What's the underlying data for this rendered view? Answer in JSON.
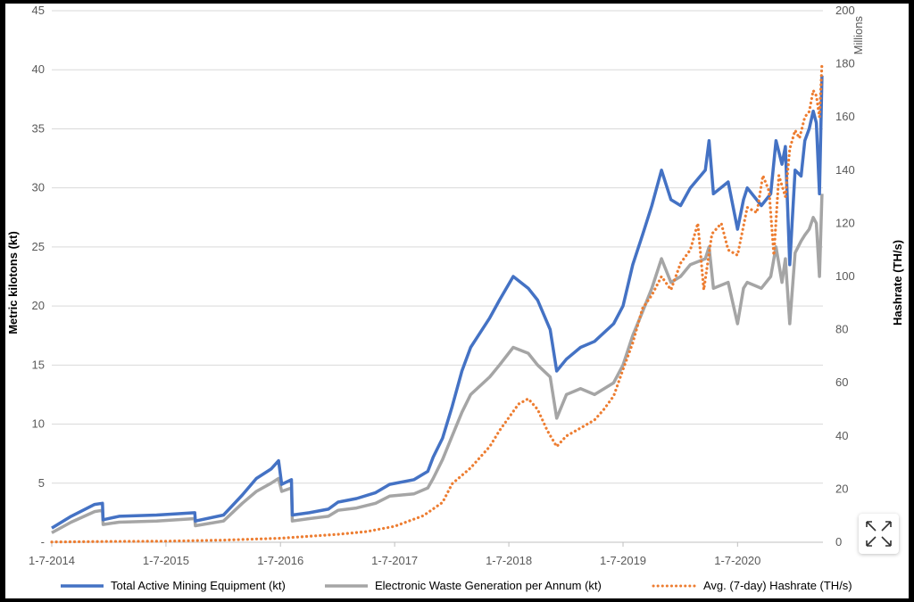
{
  "chart_data": {
    "type": "line",
    "title": "",
    "left_axis": {
      "label": "Metric kilotons (kt)",
      "ticks": [
        "-",
        "5",
        "10",
        "15",
        "20",
        "25",
        "30",
        "35",
        "40",
        "45"
      ],
      "ylim": [
        0,
        45
      ]
    },
    "right_axis": {
      "label": "Hashrate (TH/s)",
      "units_label": "Millions",
      "ticks": [
        "0",
        "20",
        "40",
        "60",
        "80",
        "100",
        "120",
        "140",
        "160",
        "180",
        "200"
      ],
      "ylim": [
        0,
        200
      ]
    },
    "x_axis": {
      "ticks": [
        "1-7-2014",
        "1-7-2015",
        "1-7-2016",
        "1-7-2017",
        "1-7-2018",
        "1-7-2019",
        "1-7-2020"
      ],
      "xlim": [
        "2014-07-01",
        "2021-03-31"
      ]
    },
    "grid": "horizontal",
    "legend_position": "bottom",
    "series": [
      {
        "name": "Total Active Mining Equipment (kt)",
        "axis": "left",
        "style": "solid",
        "color": "#4472c4",
        "points": [
          [
            "2014-07-01",
            1.2
          ],
          [
            "2014-09-01",
            2.2
          ],
          [
            "2014-11-15",
            3.2
          ],
          [
            "2014-12-10",
            3.3
          ],
          [
            "2014-12-12",
            1.9
          ],
          [
            "2015-02-01",
            2.2
          ],
          [
            "2015-06-01",
            2.3
          ],
          [
            "2015-10-01",
            2.5
          ],
          [
            "2015-10-03",
            1.8
          ],
          [
            "2016-01-01",
            2.3
          ],
          [
            "2016-03-01",
            4.0
          ],
          [
            "2016-04-15",
            5.4
          ],
          [
            "2016-06-01",
            6.2
          ],
          [
            "2016-06-25",
            6.9
          ],
          [
            "2016-07-05",
            4.9
          ],
          [
            "2016-08-05",
            5.3
          ],
          [
            "2016-08-08",
            2.3
          ],
          [
            "2016-10-01",
            2.5
          ],
          [
            "2016-12-01",
            2.8
          ],
          [
            "2017-01-01",
            3.4
          ],
          [
            "2017-03-01",
            3.7
          ],
          [
            "2017-05-01",
            4.2
          ],
          [
            "2017-06-15",
            4.9
          ],
          [
            "2017-09-01",
            5.3
          ],
          [
            "2017-10-15",
            6.0
          ],
          [
            "2017-11-01",
            7.2
          ],
          [
            "2017-12-01",
            8.8
          ],
          [
            "2018-01-01",
            11.5
          ],
          [
            "2018-02-01",
            14.5
          ],
          [
            "2018-03-01",
            16.5
          ],
          [
            "2018-05-01",
            19.0
          ],
          [
            "2018-06-01",
            20.5
          ],
          [
            "2018-07-15",
            22.5
          ],
          [
            "2018-09-01",
            21.5
          ],
          [
            "2018-10-01",
            20.5
          ],
          [
            "2018-11-10",
            18.0
          ],
          [
            "2018-12-01",
            14.5
          ],
          [
            "2019-01-01",
            15.5
          ],
          [
            "2019-02-15",
            16.5
          ],
          [
            "2019-04-01",
            17.0
          ],
          [
            "2019-06-01",
            18.5
          ],
          [
            "2019-07-01",
            20.0
          ],
          [
            "2019-08-01",
            23.5
          ],
          [
            "2019-09-01",
            26.0
          ],
          [
            "2019-10-01",
            28.5
          ],
          [
            "2019-11-01",
            31.5
          ],
          [
            "2019-12-01",
            29.0
          ],
          [
            "2020-01-01",
            28.5
          ],
          [
            "2020-02-01",
            30.0
          ],
          [
            "2020-03-20",
            31.5
          ],
          [
            "2020-04-01",
            34.0
          ],
          [
            "2020-04-15",
            29.5
          ],
          [
            "2020-06-01",
            30.5
          ],
          [
            "2020-07-01",
            26.5
          ],
          [
            "2020-07-20",
            29.0
          ],
          [
            "2020-08-01",
            30.0
          ],
          [
            "2020-09-15",
            28.5
          ],
          [
            "2020-10-15",
            29.5
          ],
          [
            "2020-11-01",
            34.0
          ],
          [
            "2020-11-20",
            32.0
          ],
          [
            "2020-12-01",
            33.5
          ],
          [
            "2020-12-15",
            23.5
          ],
          [
            "2021-01-01",
            31.5
          ],
          [
            "2021-01-20",
            31.0
          ],
          [
            "2021-02-01",
            34.0
          ],
          [
            "2021-02-15",
            35.0
          ],
          [
            "2021-02-28",
            36.5
          ],
          [
            "2021-03-10",
            35.5
          ],
          [
            "2021-03-20",
            29.5
          ],
          [
            "2021-03-28",
            39.5
          ]
        ]
      },
      {
        "name": "Electronic Waste Generation per Annum (kt)",
        "axis": "left",
        "style": "solid",
        "color": "#a5a5a5",
        "points": [
          [
            "2014-07-01",
            0.8
          ],
          [
            "2014-09-01",
            1.7
          ],
          [
            "2014-11-15",
            2.6
          ],
          [
            "2014-12-10",
            2.7
          ],
          [
            "2014-12-12",
            1.5
          ],
          [
            "2015-02-01",
            1.7
          ],
          [
            "2015-06-01",
            1.8
          ],
          [
            "2015-10-01",
            2.0
          ],
          [
            "2015-10-03",
            1.4
          ],
          [
            "2016-01-01",
            1.8
          ],
          [
            "2016-03-01",
            3.3
          ],
          [
            "2016-04-15",
            4.3
          ],
          [
            "2016-06-01",
            5.0
          ],
          [
            "2016-06-25",
            5.4
          ],
          [
            "2016-07-05",
            4.3
          ],
          [
            "2016-08-05",
            4.6
          ],
          [
            "2016-08-08",
            1.8
          ],
          [
            "2016-10-01",
            2.0
          ],
          [
            "2016-12-01",
            2.2
          ],
          [
            "2017-01-01",
            2.7
          ],
          [
            "2017-03-01",
            2.9
          ],
          [
            "2017-05-01",
            3.3
          ],
          [
            "2017-06-15",
            3.9
          ],
          [
            "2017-09-01",
            4.1
          ],
          [
            "2017-10-15",
            4.6
          ],
          [
            "2017-11-01",
            5.4
          ],
          [
            "2017-12-01",
            7.0
          ],
          [
            "2018-01-01",
            9.0
          ],
          [
            "2018-02-01",
            11.0
          ],
          [
            "2018-03-01",
            12.5
          ],
          [
            "2018-05-01",
            14.0
          ],
          [
            "2018-06-01",
            15.0
          ],
          [
            "2018-07-15",
            16.5
          ],
          [
            "2018-09-01",
            16.0
          ],
          [
            "2018-10-01",
            15.0
          ],
          [
            "2018-11-10",
            14.0
          ],
          [
            "2018-12-01",
            10.5
          ],
          [
            "2019-01-01",
            12.5
          ],
          [
            "2019-02-15",
            13.0
          ],
          [
            "2019-04-01",
            12.5
          ],
          [
            "2019-06-01",
            13.5
          ],
          [
            "2019-07-01",
            15.0
          ],
          [
            "2019-08-01",
            17.5
          ],
          [
            "2019-09-01",
            19.5
          ],
          [
            "2019-10-01",
            21.5
          ],
          [
            "2019-11-01",
            24.0
          ],
          [
            "2019-12-01",
            22.0
          ],
          [
            "2020-01-01",
            22.5
          ],
          [
            "2020-02-01",
            23.5
          ],
          [
            "2020-03-20",
            24.0
          ],
          [
            "2020-04-01",
            25.0
          ],
          [
            "2020-04-15",
            21.5
          ],
          [
            "2020-06-01",
            22.0
          ],
          [
            "2020-07-01",
            18.5
          ],
          [
            "2020-07-20",
            21.5
          ],
          [
            "2020-08-01",
            22.0
          ],
          [
            "2020-09-15",
            21.5
          ],
          [
            "2020-10-15",
            22.5
          ],
          [
            "2020-11-01",
            25.0
          ],
          [
            "2020-11-20",
            22.0
          ],
          [
            "2020-12-01",
            24.0
          ],
          [
            "2020-12-15",
            18.5
          ],
          [
            "2021-01-01",
            24.5
          ],
          [
            "2021-01-20",
            25.5
          ],
          [
            "2021-02-01",
            26.0
          ],
          [
            "2021-02-15",
            26.5
          ],
          [
            "2021-02-28",
            27.5
          ],
          [
            "2021-03-10",
            27.0
          ],
          [
            "2021-03-20",
            22.5
          ],
          [
            "2021-03-28",
            29.5
          ]
        ]
      },
      {
        "name": "Avg. (7-day) Hashrate (TH/s)",
        "axis": "right",
        "style": "dotted",
        "color": "#ed7d31",
        "points": [
          [
            "2014-07-01",
            0.1
          ],
          [
            "2015-01-01",
            0.3
          ],
          [
            "2015-07-01",
            0.4
          ],
          [
            "2016-01-01",
            0.8
          ],
          [
            "2016-07-01",
            1.5
          ],
          [
            "2017-01-01",
            3.0
          ],
          [
            "2017-04-01",
            4.0
          ],
          [
            "2017-07-01",
            6.0
          ],
          [
            "2017-10-01",
            10.0
          ],
          [
            "2017-12-01",
            15.0
          ],
          [
            "2018-01-01",
            22.0
          ],
          [
            "2018-03-01",
            28.0
          ],
          [
            "2018-05-01",
            36.0
          ],
          [
            "2018-06-01",
            42.0
          ],
          [
            "2018-08-01",
            52.0
          ],
          [
            "2018-09-01",
            54.0
          ],
          [
            "2018-10-01",
            50.0
          ],
          [
            "2018-11-01",
            42.0
          ],
          [
            "2018-12-01",
            36.0
          ],
          [
            "2019-01-01",
            40.0
          ],
          [
            "2019-02-01",
            42.0
          ],
          [
            "2019-04-01",
            46.0
          ],
          [
            "2019-05-01",
            50.0
          ],
          [
            "2019-06-01",
            55.0
          ],
          [
            "2019-07-01",
            65.0
          ],
          [
            "2019-08-01",
            75.0
          ],
          [
            "2019-09-01",
            88.0
          ],
          [
            "2019-10-01",
            93.0
          ],
          [
            "2019-11-01",
            100.0
          ],
          [
            "2019-12-01",
            95.0
          ],
          [
            "2020-01-01",
            105.0
          ],
          [
            "2020-02-01",
            110.0
          ],
          [
            "2020-02-25",
            120.0
          ],
          [
            "2020-03-15",
            95.0
          ],
          [
            "2020-04-10",
            116.0
          ],
          [
            "2020-05-10",
            120.0
          ],
          [
            "2020-06-01",
            110.0
          ],
          [
            "2020-07-01",
            108.0
          ],
          [
            "2020-08-01",
            126.0
          ],
          [
            "2020-09-01",
            124.0
          ],
          [
            "2020-09-20",
            138.0
          ],
          [
            "2020-10-10",
            132.0
          ],
          [
            "2020-10-25",
            108.0
          ],
          [
            "2020-11-10",
            138.0
          ],
          [
            "2020-12-01",
            130.0
          ],
          [
            "2020-12-15",
            148.0
          ],
          [
            "2021-01-01",
            155.0
          ],
          [
            "2021-01-15",
            152.0
          ],
          [
            "2021-02-01",
            160.0
          ],
          [
            "2021-02-15",
            162.0
          ],
          [
            "2021-02-28",
            170.0
          ],
          [
            "2021-03-10",
            168.0
          ],
          [
            "2021-03-20",
            160.0
          ],
          [
            "2021-03-28",
            180.0
          ]
        ]
      }
    ]
  },
  "icons": {
    "expand": "expand-arrows-icon"
  }
}
